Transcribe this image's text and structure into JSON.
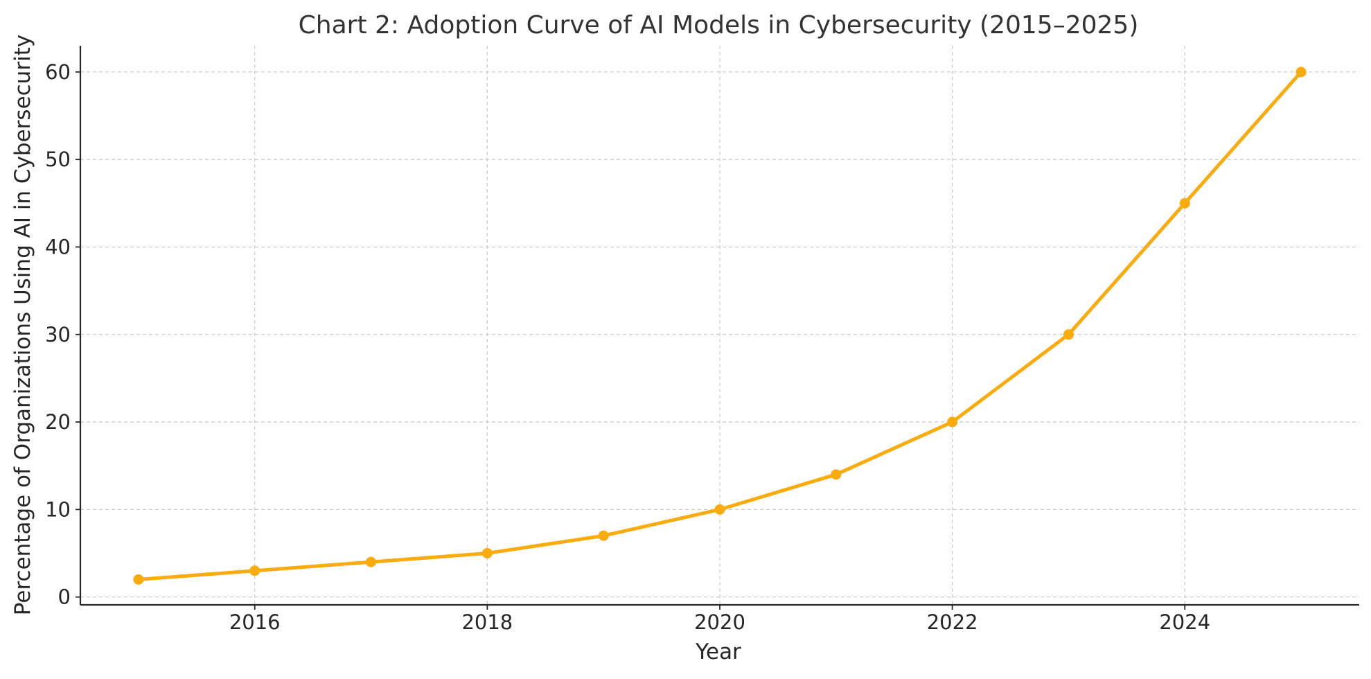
{
  "chart_data": {
    "type": "line",
    "title": "Chart 2: Adoption Curve of AI Models in Cybersecurity (2015–2025)",
    "xlabel": "Year",
    "ylabel": "Percentage of Organizations Using AI in Cybersecurity",
    "x": [
      2015,
      2016,
      2017,
      2018,
      2019,
      2020,
      2021,
      2022,
      2023,
      2024,
      2025
    ],
    "series": [
      {
        "values": [
          2,
          3,
          4,
          5,
          7,
          10,
          14,
          20,
          30,
          45,
          60
        ],
        "color": "#FAAB0E",
        "marker": "circle"
      }
    ],
    "xlim": [
      2014.5,
      2025.5
    ],
    "ylim": [
      -0.9,
      63
    ],
    "xticks": [
      2016,
      2018,
      2020,
      2022,
      2024
    ],
    "xtick_labels": [
      "2016",
      "2018",
      "2020",
      "2022",
      "2024"
    ],
    "yticks": [
      0,
      10,
      20,
      30,
      40,
      50,
      60
    ],
    "ytick_labels": [
      "0",
      "10",
      "20",
      "30",
      "40",
      "50",
      "60"
    ],
    "grid": true,
    "legend": "none"
  }
}
